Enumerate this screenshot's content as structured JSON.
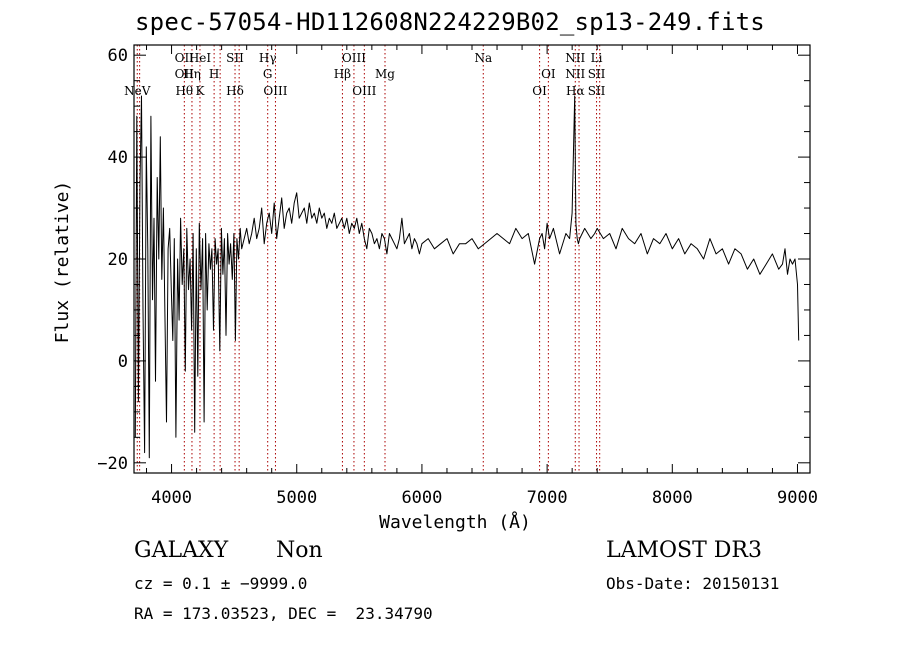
{
  "chart_data": {
    "type": "line",
    "title": "spec-57054-HD112608N224229B02_sp13-249.fits",
    "xlabel": "Wavelength (Å)",
    "ylabel": "Flux (relative)",
    "xlim": [
      3700,
      9100
    ],
    "ylim": [
      -22,
      62
    ],
    "xticks": [
      4000,
      5000,
      6000,
      7000,
      8000,
      9000
    ],
    "yticks": [
      -20,
      0,
      20,
      40,
      60
    ],
    "xtick_labels": [
      "4000",
      "5000",
      "6000",
      "7000",
      "8000",
      "9000"
    ],
    "ytick_labels": [
      "−20",
      "0",
      "20",
      "40",
      "60"
    ],
    "series": [
      {
        "name": "flux",
        "x": [
          3710,
          3722,
          3735,
          3748,
          3760,
          3772,
          3785,
          3798,
          3810,
          3822,
          3835,
          3848,
          3860,
          3872,
          3885,
          3898,
          3910,
          3922,
          3935,
          3948,
          3960,
          3972,
          3985,
          3998,
          4010,
          4022,
          4035,
          4048,
          4060,
          4072,
          4085,
          4098,
          4110,
          4122,
          4135,
          4148,
          4160,
          4172,
          4185,
          4198,
          4210,
          4222,
          4235,
          4248,
          4260,
          4272,
          4285,
          4298,
          4310,
          4322,
          4335,
          4348,
          4360,
          4372,
          4385,
          4398,
          4410,
          4422,
          4435,
          4448,
          4460,
          4472,
          4485,
          4498,
          4510,
          4522,
          4535,
          4548,
          4560,
          4580,
          4600,
          4620,
          4640,
          4660,
          4680,
          4700,
          4720,
          4740,
          4760,
          4780,
          4800,
          4820,
          4840,
          4860,
          4880,
          4900,
          4920,
          4940,
          4960,
          4980,
          5000,
          5020,
          5040,
          5060,
          5080,
          5100,
          5120,
          5140,
          5160,
          5180,
          5200,
          5220,
          5240,
          5260,
          5280,
          5300,
          5320,
          5340,
          5360,
          5380,
          5400,
          5420,
          5440,
          5460,
          5480,
          5500,
          5520,
          5540,
          5560,
          5580,
          5600,
          5620,
          5640,
          5660,
          5680,
          5700,
          5720,
          5740,
          5760,
          5780,
          5800,
          5820,
          5840,
          5860,
          5880,
          5900,
          5920,
          5940,
          5960,
          5980,
          6000,
          6050,
          6100,
          6150,
          6200,
          6250,
          6300,
          6350,
          6400,
          6450,
          6500,
          6550,
          6600,
          6650,
          6700,
          6750,
          6800,
          6850,
          6900,
          6940,
          6960,
          6980,
          7000,
          7020,
          7050,
          7100,
          7150,
          7180,
          7200,
          7220,
          7230,
          7240,
          7250,
          7260,
          7280,
          7300,
          7350,
          7380,
          7400,
          7450,
          7500,
          7550,
          7600,
          7650,
          7700,
          7750,
          7800,
          7850,
          7900,
          7950,
          8000,
          8050,
          8100,
          8150,
          8200,
          8250,
          8300,
          8350,
          8400,
          8450,
          8500,
          8550,
          8600,
          8650,
          8700,
          8750,
          8800,
          8850,
          8880,
          8900,
          8920,
          8940,
          8960,
          8980,
          9000,
          9010
        ],
        "y": [
          -15,
          48,
          -8,
          35,
          52,
          10,
          -18,
          42,
          22,
          -19,
          48,
          12,
          28,
          -4,
          36,
          20,
          44,
          16,
          30,
          8,
          -12,
          22,
          26,
          14,
          4,
          24,
          -15,
          20,
          8,
          28,
          15,
          22,
          -2,
          26,
          14,
          20,
          6,
          25,
          -14,
          22,
          -3,
          27,
          14,
          24,
          -12,
          25,
          10,
          23,
          18,
          22,
          6,
          24,
          19,
          22,
          2,
          26,
          17,
          24,
          5,
          25,
          19,
          23,
          16,
          25,
          4,
          24,
          20,
          26,
          22,
          24,
          26,
          23,
          25,
          28,
          24,
          26,
          30,
          23,
          27,
          29,
          25,
          31,
          24,
          28,
          32,
          26,
          29,
          30,
          27,
          31,
          33,
          28,
          29,
          30,
          27,
          31,
          28,
          29,
          27,
          30,
          28,
          29,
          26,
          28,
          27,
          29,
          26,
          27,
          28,
          26,
          28,
          25,
          27,
          26,
          28,
          25,
          27,
          24,
          22,
          26,
          25,
          23,
          24,
          22,
          25,
          24,
          21,
          25,
          24,
          23,
          22,
          24,
          28,
          23,
          24,
          25,
          22,
          24,
          23,
          21,
          23,
          24,
          22,
          23,
          24,
          21,
          23,
          23,
          24,
          22,
          23,
          24,
          25,
          24,
          23,
          26,
          24,
          25,
          19,
          24,
          25,
          22,
          27,
          24,
          26,
          21,
          25,
          24,
          29,
          52,
          27,
          24,
          23,
          24,
          25,
          26,
          24,
          25,
          26,
          24,
          25,
          22,
          26,
          24,
          23,
          25,
          21,
          24,
          23,
          25,
          22,
          24,
          21,
          23,
          22,
          20,
          24,
          21,
          22,
          19,
          22,
          21,
          18,
          20,
          17,
          19,
          21,
          18,
          19,
          22,
          17,
          20,
          19,
          20,
          15,
          4
        ]
      }
    ],
    "lines": [
      {
        "wl": 3726,
        "top": "",
        "mid": "",
        "low": "NeV"
      },
      {
        "wl": 3745,
        "top": "",
        "mid": "",
        "low": ""
      },
      {
        "wl": 4102,
        "top": "OII",
        "mid": "OII",
        "low": "Hθ"
      },
      {
        "wl": 4163,
        "top": "",
        "mid": "Hη",
        "low": ""
      },
      {
        "wl": 4227,
        "top": "HeI",
        "mid": "",
        "low": "K"
      },
      {
        "wl": 4340,
        "top": "",
        "mid": "H",
        "low": ""
      },
      {
        "wl": 4388,
        "top": "",
        "mid": "",
        "low": ""
      },
      {
        "wl": 4507,
        "top": "SII",
        "mid": "",
        "low": "Hδ"
      },
      {
        "wl": 4540,
        "top": "",
        "mid": "",
        "low": ""
      },
      {
        "wl": 4768,
        "top": "Hγ",
        "mid": "G",
        "low": ""
      },
      {
        "wl": 4830,
        "top": "",
        "mid": "",
        "low": "OIII"
      },
      {
        "wl": 5365,
        "top": "",
        "mid": "Hβ",
        "low": ""
      },
      {
        "wl": 5457,
        "top": "OIII",
        "mid": "",
        "low": ""
      },
      {
        "wl": 5540,
        "top": "",
        "mid": "",
        "low": "OIII"
      },
      {
        "wl": 5705,
        "top": "",
        "mid": "Mg",
        "low": ""
      },
      {
        "wl": 6490,
        "top": "Na",
        "mid": "",
        "low": ""
      },
      {
        "wl": 6940,
        "top": "",
        "mid": "",
        "low": "OI"
      },
      {
        "wl": 7010,
        "top": "",
        "mid": "OI",
        "low": ""
      },
      {
        "wl": 7225,
        "top": "NII",
        "mid": "NII",
        "low": "Hα"
      },
      {
        "wl": 7255,
        "top": "",
        "mid": "",
        "low": ""
      },
      {
        "wl": 7395,
        "top": "Li",
        "mid": "SII",
        "low": "SII"
      },
      {
        "wl": 7420,
        "top": "",
        "mid": "",
        "low": ""
      }
    ]
  },
  "info": {
    "class": "GALAXY",
    "subclass": "Non",
    "survey": "LAMOST DR3",
    "cz": "cz = 0.1 ± −9999.0",
    "obs_date": "Obs-Date: 20150131",
    "coords": "RA = 173.03523, DEC =  23.34790"
  },
  "colors": {
    "line_marker": "#aa0000",
    "spectrum": "#000000",
    "axes": "#000000"
  }
}
